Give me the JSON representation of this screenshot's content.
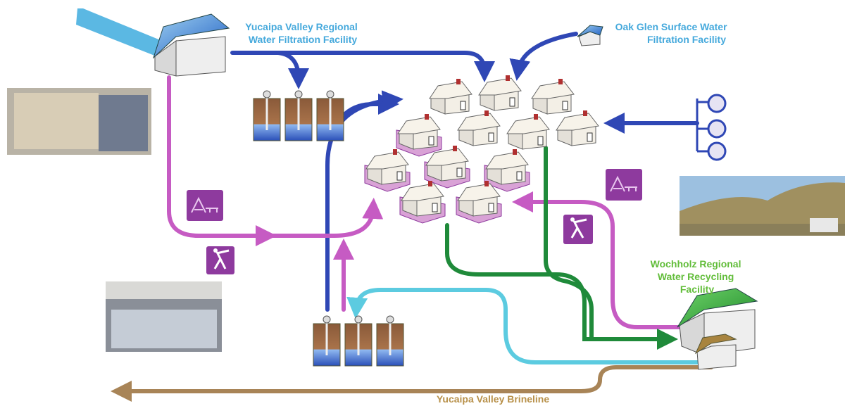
{
  "labels": {
    "yucaipa_filtration": [
      "Yucaipa Valley Regional",
      "Water Filtration Facility"
    ],
    "oak_glen": [
      "Oak Glen Surface Water",
      "Filtration Facility"
    ],
    "wochholz": [
      "Wochholz Regional",
      "Water Recycling",
      "Facility"
    ],
    "brineline": "Yucaipa Valley Brineline"
  }
}
